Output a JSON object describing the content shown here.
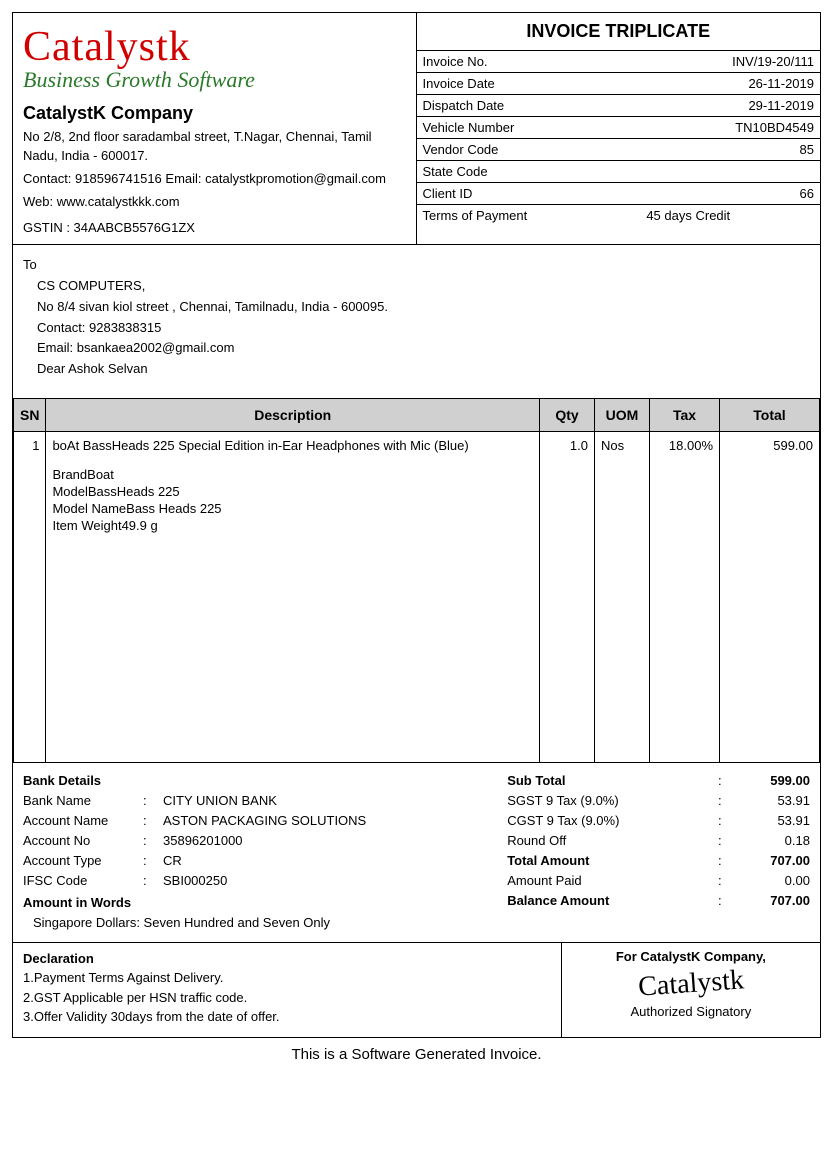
{
  "doc": {
    "title": "INVOICE TRIPLICATE",
    "footer": "This is a Software Generated Invoice."
  },
  "logo": {
    "main": "Catalystk",
    "sub": "Business Growth Software",
    "main_color": "#d00000",
    "sub_color": "#2a7a2a"
  },
  "company": {
    "name": "CatalystK Company",
    "address": "No 2/8, 2nd floor saradambal street, T.Nagar, Chennai, Tamil Nadu, India - 600017.",
    "contact": "Contact: 918596741516  Email: catalystkpromotion@gmail.com",
    "web": "Web: www.catalystkkk.com",
    "gstin": "GSTIN : 34AABCB5576G1ZX"
  },
  "meta": {
    "labels": {
      "invoice_no": "Invoice No.",
      "invoice_date": "Invoice Date",
      "dispatch_date": "Dispatch Date",
      "vehicle_number": "Vehicle Number",
      "vendor_code": "Vendor Code",
      "state_code": "State Code",
      "client_id": "Client ID",
      "terms": "Terms of Payment"
    },
    "values": {
      "invoice_no": "INV/19-20/111",
      "invoice_date": "26-11-2019",
      "dispatch_date": "29-11-2019",
      "vehicle_number": "TN10BD4549",
      "vendor_code": "85",
      "state_code": "",
      "client_id": "66",
      "terms": "45 days Credit"
    }
  },
  "to": {
    "label": "To",
    "name": "CS COMPUTERS,",
    "address": "No 8/4  sivan kiol street , Chennai, Tamilnadu, India - 600095.",
    "contact": "Contact: 9283838315",
    "email": "Email: bsankaea2002@gmail.com",
    "attn": "Dear Ashok Selvan"
  },
  "table": {
    "headers": {
      "sn": "SN",
      "desc": "Description",
      "qty": "Qty",
      "uom": "UOM",
      "tax": "Tax",
      "total": "Total"
    },
    "row": {
      "sn": "1",
      "desc": "boAt BassHeads 225 Special Edition in-Ear Headphones with Mic (Blue)",
      "brand": "BrandBoat",
      "model": "ModelBassHeads 225",
      "model_name": "Model NameBass Heads 225",
      "item_weight": "Item Weight49.9 g",
      "qty": "1.0",
      "uom": "Nos",
      "tax": "18.00%",
      "total": "599.00"
    }
  },
  "bank": {
    "title": "Bank Details",
    "labels": {
      "bank_name": "Bank Name",
      "account_name": "Account Name",
      "account_no": "Account No",
      "account_type": "Account Type",
      "ifsc": "IFSC Code"
    },
    "values": {
      "bank_name": "CITY UNION BANK",
      "account_name": "ASTON PACKAGING SOLUTIONS",
      "account_no": "35896201000",
      "account_type": "CR",
      "ifsc": "SBI000250"
    },
    "aiw_label": "Amount in Words",
    "aiw_value": "Singapore Dollars: Seven Hundred and Seven Only"
  },
  "totals": {
    "rows": [
      {
        "label": "Sub Total",
        "value": "599.00",
        "bold": true
      },
      {
        "label": "SGST 9 Tax (9.0%)",
        "value": "53.91",
        "bold": false
      },
      {
        "label": "CGST 9 Tax (9.0%)",
        "value": "53.91",
        "bold": false
      },
      {
        "label": "Round Off",
        "value": "0.18",
        "bold": false
      },
      {
        "label": "Total Amount",
        "value": "707.00",
        "bold": true
      },
      {
        "label": "Amount Paid",
        "value": "0.00",
        "bold": false
      },
      {
        "label": "Balance Amount",
        "value": "707.00",
        "bold": true
      }
    ]
  },
  "declaration": {
    "title": "Declaration",
    "lines": [
      "1.Payment Terms Against Delivery.",
      "2.GST Applicable per HSN traffic code.",
      "3.Offer Validity 30days from the date of offer."
    ]
  },
  "signature": {
    "for_text": "For CatalystK Company,",
    "auth": "Authorized Signatory"
  }
}
